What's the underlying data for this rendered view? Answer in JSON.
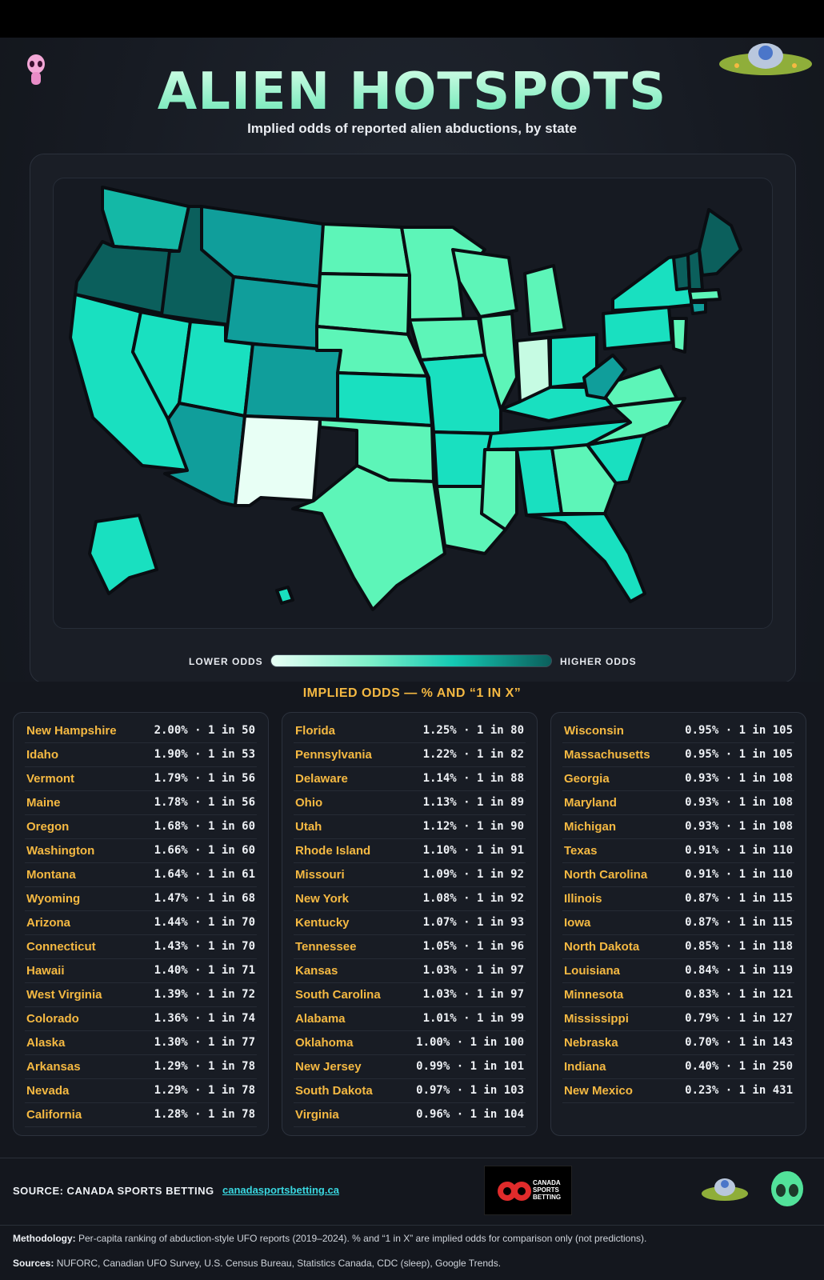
{
  "header": {
    "title": "ALIEN HOTSPOTS",
    "subtitle": "Implied odds of reported alien abductions, by state"
  },
  "legend": {
    "low_label": "LOWER ODDS",
    "high_label": "HIGHER ODDS"
  },
  "odds": {
    "title": "IMPLIED ODDS — % AND “1 IN X”",
    "column1": [
      {
        "state": "New Hampshire",
        "odds": "2.00% · 1 in 50"
      },
      {
        "state": "Idaho",
        "odds": "1.90% · 1 in 53"
      },
      {
        "state": "Vermont",
        "odds": "1.79% · 1 in 56"
      },
      {
        "state": "Maine",
        "odds": "1.78% · 1 in 56"
      },
      {
        "state": "Oregon",
        "odds": "1.68% · 1 in 60"
      },
      {
        "state": "Washington",
        "odds": "1.66% · 1 in 60"
      },
      {
        "state": "Montana",
        "odds": "1.64% · 1 in 61"
      },
      {
        "state": "Wyoming",
        "odds": "1.47% · 1 in 68"
      },
      {
        "state": "Arizona",
        "odds": "1.44% · 1 in 70"
      },
      {
        "state": "Connecticut",
        "odds": "1.43% · 1 in 70"
      },
      {
        "state": "Hawaii",
        "odds": "1.40% · 1 in 71"
      },
      {
        "state": "West Virginia",
        "odds": "1.39% · 1 in 72"
      },
      {
        "state": "Colorado",
        "odds": "1.36% · 1 in 74"
      },
      {
        "state": "Alaska",
        "odds": "1.30% · 1 in 77"
      },
      {
        "state": "Arkansas",
        "odds": "1.29% · 1 in 78"
      },
      {
        "state": "Nevada",
        "odds": "1.29% · 1 in 78"
      },
      {
        "state": "California",
        "odds": "1.28% · 1 in 78"
      }
    ],
    "column2": [
      {
        "state": "Florida",
        "odds": "1.25% · 1 in 80"
      },
      {
        "state": "Pennsylvania",
        "odds": "1.22% · 1 in 82"
      },
      {
        "state": "Delaware",
        "odds": "1.14% · 1 in 88"
      },
      {
        "state": "Ohio",
        "odds": "1.13% · 1 in 89"
      },
      {
        "state": "Utah",
        "odds": "1.12% · 1 in 90"
      },
      {
        "state": "Rhode Island",
        "odds": "1.10% · 1 in 91"
      },
      {
        "state": "Missouri",
        "odds": "1.09% · 1 in 92"
      },
      {
        "state": "New York",
        "odds": "1.08% · 1 in 92"
      },
      {
        "state": "Kentucky",
        "odds": "1.07% · 1 in 93"
      },
      {
        "state": "Tennessee",
        "odds": "1.05% · 1 in 96"
      },
      {
        "state": "Kansas",
        "odds": "1.03% · 1 in 97"
      },
      {
        "state": "South Carolina",
        "odds": "1.03% · 1 in 97"
      },
      {
        "state": "Alabama",
        "odds": "1.01% · 1 in 99"
      },
      {
        "state": "Oklahoma",
        "odds": "1.00% · 1 in 100"
      },
      {
        "state": "New Jersey",
        "odds": "0.99% · 1 in 101"
      },
      {
        "state": "South Dakota",
        "odds": "0.97% · 1 in 103"
      },
      {
        "state": "Virginia",
        "odds": "0.96% · 1 in 104"
      }
    ],
    "column3": [
      {
        "state": "Wisconsin",
        "odds": "0.95% · 1 in 105"
      },
      {
        "state": "Massachusetts",
        "odds": "0.95% · 1 in 105"
      },
      {
        "state": "Georgia",
        "odds": "0.93% · 1 in 108"
      },
      {
        "state": "Maryland",
        "odds": "0.93% · 1 in 108"
      },
      {
        "state": "Michigan",
        "odds": "0.93% · 1 in 108"
      },
      {
        "state": "Texas",
        "odds": "0.91% · 1 in 110"
      },
      {
        "state": "North Carolina",
        "odds": "0.91% · 1 in 110"
      },
      {
        "state": "Illinois",
        "odds": "0.87% · 1 in 115"
      },
      {
        "state": "Iowa",
        "odds": "0.87% · 1 in 115"
      },
      {
        "state": "North Dakota",
        "odds": "0.85% · 1 in 118"
      },
      {
        "state": "Louisiana",
        "odds": "0.84% · 1 in 119"
      },
      {
        "state": "Minnesota",
        "odds": "0.83% · 1 in 121"
      },
      {
        "state": "Mississippi",
        "odds": "0.79% · 1 in 127"
      },
      {
        "state": "Nebraska",
        "odds": "0.70% · 1 in 143"
      },
      {
        "state": "Indiana",
        "odds": "0.40% · 1 in 250"
      },
      {
        "state": "New Mexico",
        "odds": "0.23% · 1 in 431"
      }
    ]
  },
  "footer": {
    "source_label": "SOURCE: CANADA SPORTS BETTING",
    "source_link": "canadasportsbetting.ca",
    "logo_text": "CANADA SPORTS BETTING",
    "methodology_label": "Methodology:",
    "methodology_text": "Per-capita ranking of abduction-style UFO reports (2019–2024). % and “1 in X” are implied odds for comparison only (not predictions).",
    "sources_label": "Sources:",
    "sources_text": "NUFORC, Canadian UFO Survey, U.S. Census Bureau, Statistics Canada, CDC (sleep), Google Trends."
  },
  "colors": {
    "accent_gold": "#f5b942",
    "title_mint": "#66e6b4",
    "link_cyan": "#39d7e0",
    "scale_low": "#e8fff5",
    "scale_high": "#0b5f5c"
  },
  "icons": [
    "alien-head-icon",
    "ufo-saucer-icon",
    "pink-alien-icon"
  ]
}
